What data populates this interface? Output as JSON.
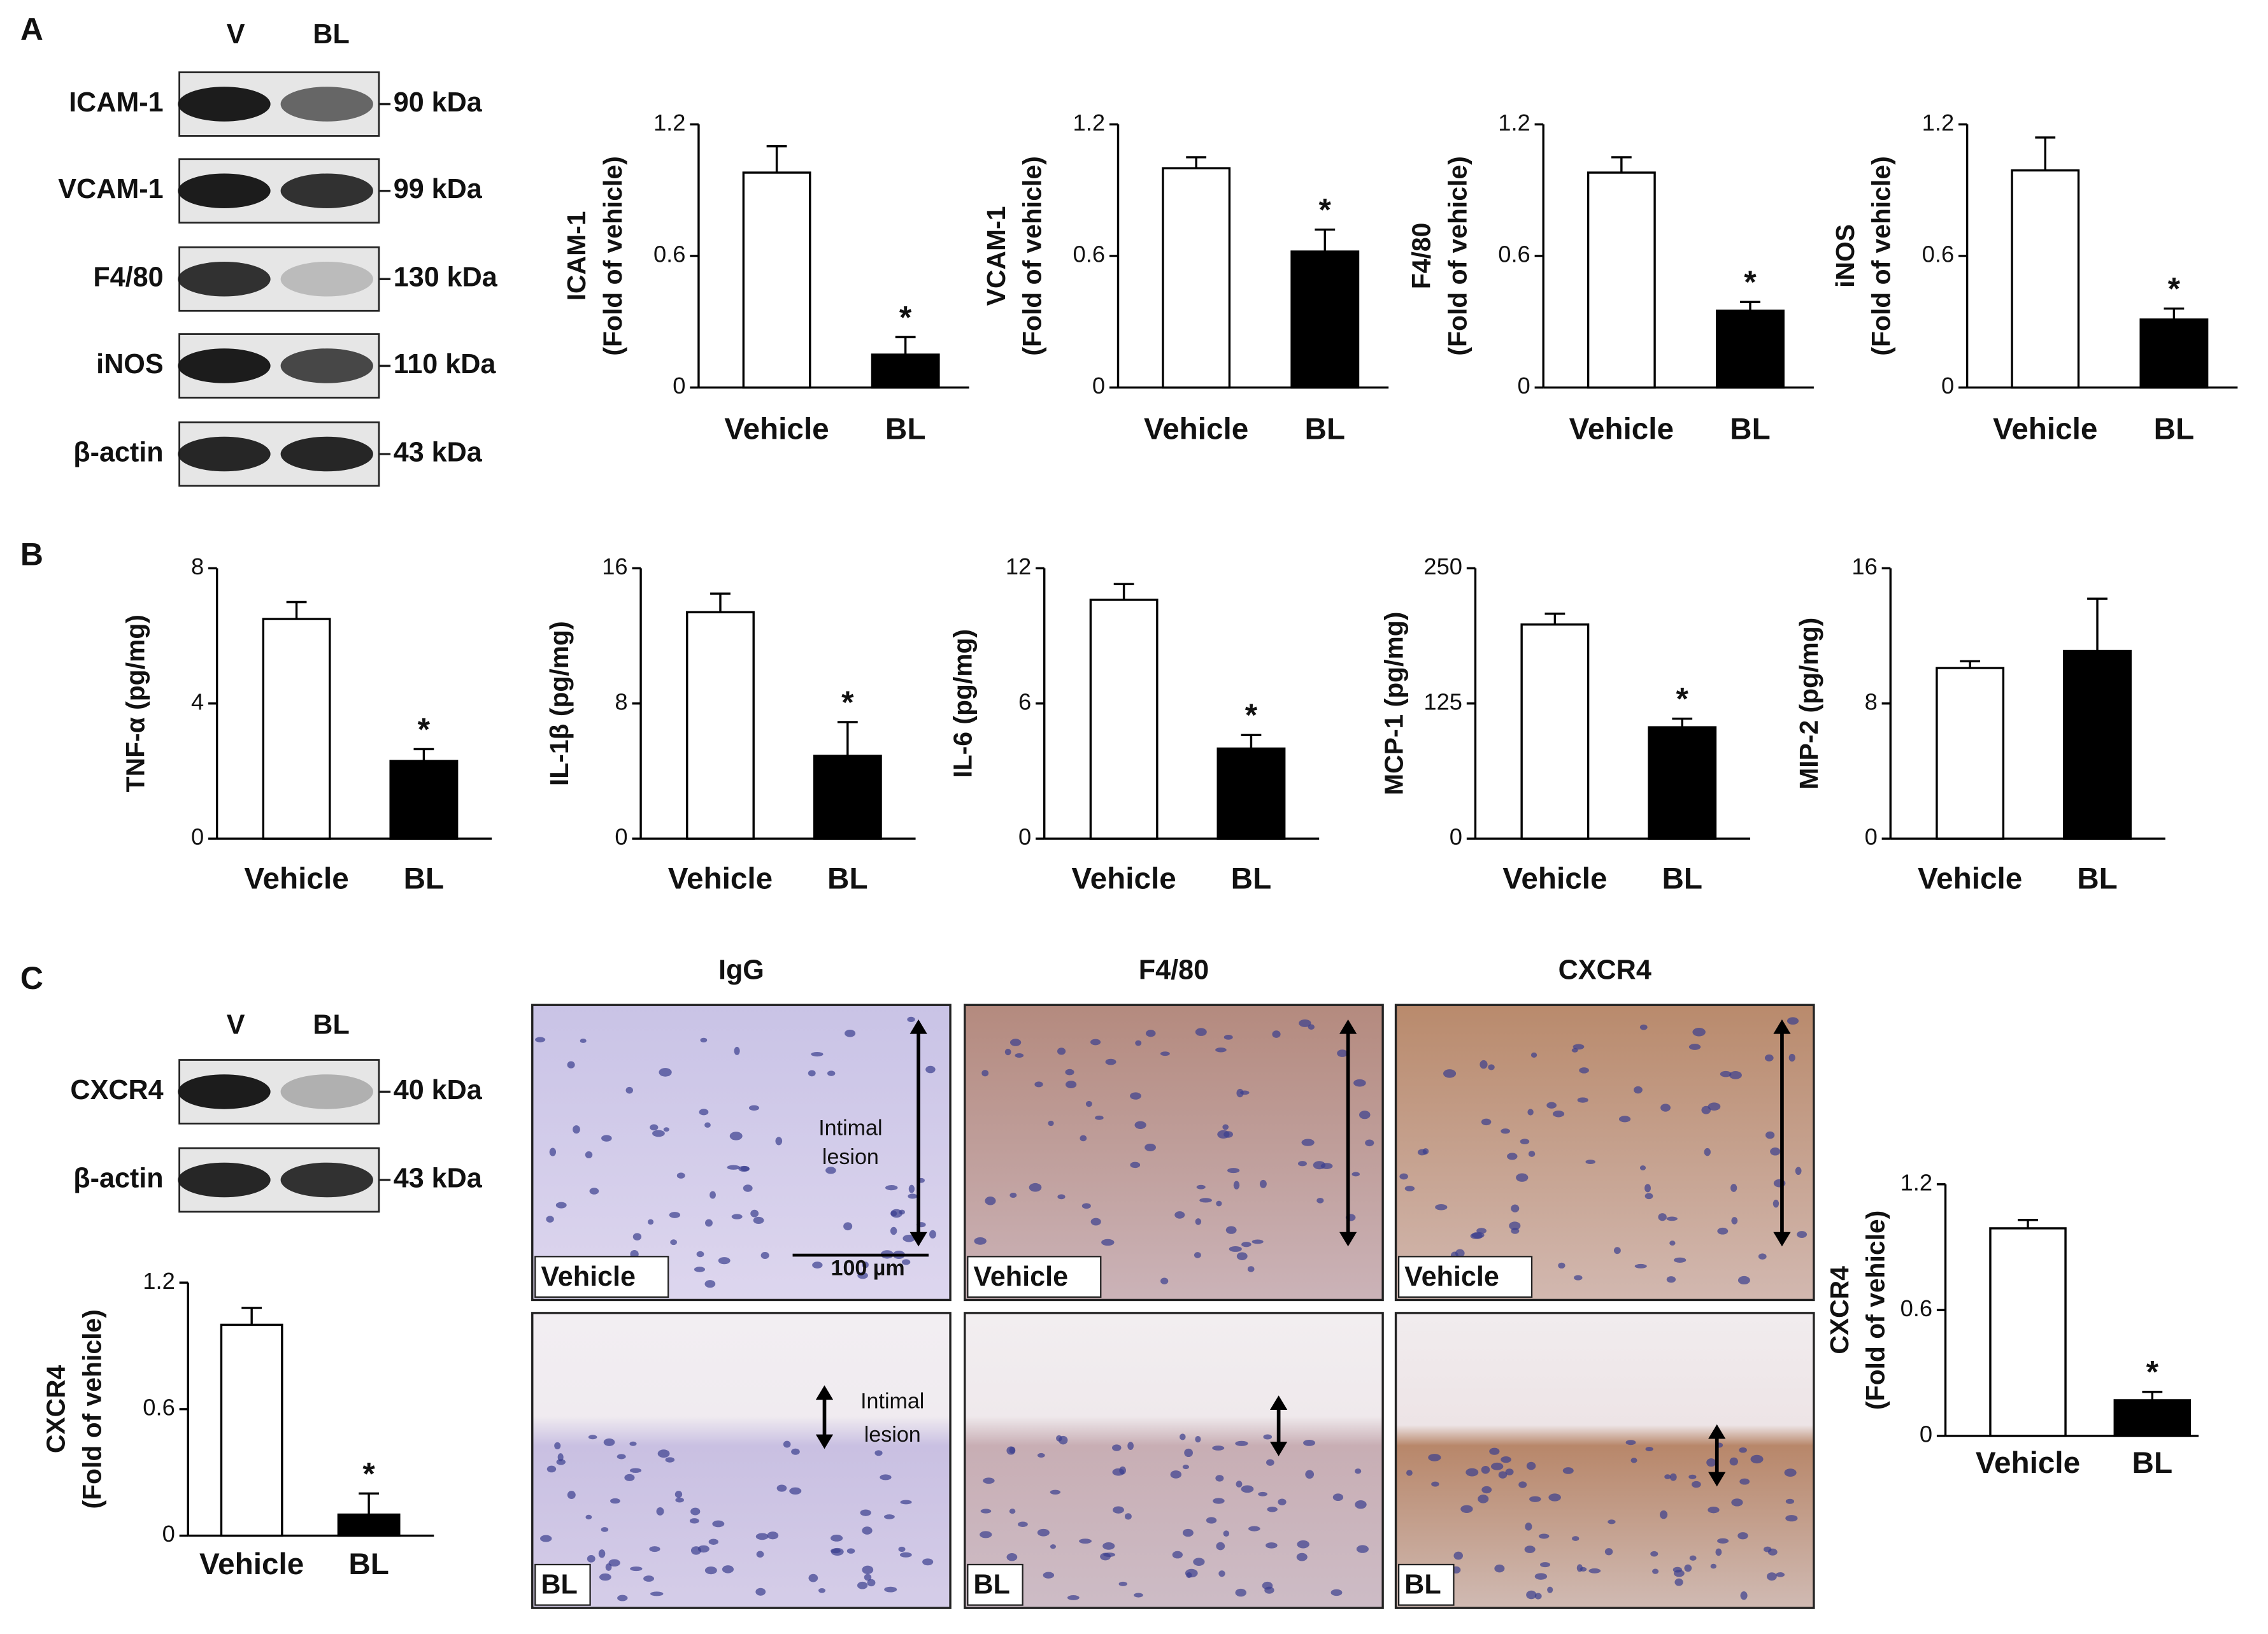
{
  "panel_labels": [
    "A",
    "B",
    "C"
  ],
  "blot_a": {
    "lanes": [
      "V",
      "BL"
    ],
    "rows": [
      {
        "label": "ICAM-1",
        "size": "90 kDa"
      },
      {
        "label": "VCAM-1",
        "size": "99 kDa"
      },
      {
        "label": "F4/80",
        "size": "130 kDa"
      },
      {
        "label": "iNOS",
        "size": "110 kDa"
      },
      {
        "label": "β-actin",
        "size": "43 kDa"
      }
    ]
  },
  "blot_c": {
    "lanes": [
      "V",
      "BL"
    ],
    "rows": [
      {
        "label": "CXCR4",
        "size": "40 kDa"
      },
      {
        "label": "β-actin",
        "size": "43 kDa"
      }
    ]
  },
  "micrographs": {
    "columns": [
      "IgG",
      "F4/80",
      "CXCR4"
    ],
    "rows": [
      "Vehicle",
      "BL"
    ],
    "lesion_label": [
      "Intimal",
      "lesion"
    ],
    "scale_bar": "100 µm"
  },
  "chart_data": [
    {
      "type": "bar",
      "ylabel": [
        "ICAM-1",
        "(Fold of vehicle)"
      ],
      "categories": [
        "Vehicle",
        "BL"
      ],
      "values": [
        0.98,
        0.15
      ],
      "errors": [
        0.12,
        0.08
      ],
      "colors": [
        "#ffffff",
        "#000000"
      ],
      "ylim": [
        0,
        1.2
      ],
      "yticks": [
        0,
        0.6,
        1.2
      ],
      "annotation": "*"
    },
    {
      "type": "bar",
      "ylabel": [
        "VCAM-1",
        "(Fold of vehicle)"
      ],
      "categories": [
        "Vehicle",
        "BL"
      ],
      "values": [
        1.0,
        0.62
      ],
      "errors": [
        0.05,
        0.1
      ],
      "colors": [
        "#ffffff",
        "#000000"
      ],
      "ylim": [
        0,
        1.2
      ],
      "yticks": [
        0,
        0.6,
        1.2
      ],
      "annotation": "*"
    },
    {
      "type": "bar",
      "ylabel": [
        "F4/80",
        "(Fold of vehicle)"
      ],
      "categories": [
        "Vehicle",
        "BL"
      ],
      "values": [
        0.98,
        0.35
      ],
      "errors": [
        0.07,
        0.04
      ],
      "colors": [
        "#ffffff",
        "#000000"
      ],
      "ylim": [
        0,
        1.2
      ],
      "yticks": [
        0,
        0.6,
        1.2
      ],
      "annotation": "*"
    },
    {
      "type": "bar",
      "ylabel": [
        "iNOS",
        "(Fold of vehicle)"
      ],
      "categories": [
        "Vehicle",
        "BL"
      ],
      "values": [
        0.99,
        0.31
      ],
      "errors": [
        0.15,
        0.05
      ],
      "colors": [
        "#ffffff",
        "#000000"
      ],
      "ylim": [
        0,
        1.2
      ],
      "yticks": [
        0,
        0.6,
        1.2
      ],
      "annotation": "*"
    },
    {
      "type": "bar",
      "ylabel": [
        "TNF-α (pg/mg)"
      ],
      "categories": [
        "Vehicle",
        "BL"
      ],
      "values": [
        6.5,
        2.3
      ],
      "errors": [
        0.5,
        0.35
      ],
      "colors": [
        "#ffffff",
        "#000000"
      ],
      "ylim": [
        0,
        8
      ],
      "yticks": [
        0,
        4,
        8
      ],
      "annotation": "*"
    },
    {
      "type": "bar",
      "ylabel": [
        "IL-1β (pg/mg)"
      ],
      "categories": [
        "Vehicle",
        "BL"
      ],
      "values": [
        13.4,
        4.9
      ],
      "errors": [
        1.1,
        2.0
      ],
      "colors": [
        "#ffffff",
        "#000000"
      ],
      "ylim": [
        0,
        16
      ],
      "yticks": [
        0,
        8,
        16
      ],
      "annotation": "*"
    },
    {
      "type": "bar",
      "ylabel": [
        "IL-6 (pg/mg)"
      ],
      "categories": [
        "Vehicle",
        "BL"
      ],
      "values": [
        10.6,
        4.0
      ],
      "errors": [
        0.7,
        0.6
      ],
      "colors": [
        "#ffffff",
        "#000000"
      ],
      "ylim": [
        0,
        12
      ],
      "yticks": [
        0,
        6,
        12
      ],
      "annotation": "*"
    },
    {
      "type": "bar",
      "ylabel": [
        "MCP-1 (pg/mg)"
      ],
      "categories": [
        "Vehicle",
        "BL"
      ],
      "values": [
        198,
        103
      ],
      "errors": [
        10,
        8
      ],
      "colors": [
        "#ffffff",
        "#000000"
      ],
      "ylim": [
        0,
        250
      ],
      "yticks": [
        0,
        125,
        250
      ],
      "annotation": "*"
    },
    {
      "type": "bar",
      "ylabel": [
        "MIP-2 (pg/mg)"
      ],
      "categories": [
        "Vehicle",
        "BL"
      ],
      "values": [
        10.1,
        11.1
      ],
      "errors": [
        0.4,
        3.1
      ],
      "colors": [
        "#ffffff",
        "#000000"
      ],
      "ylim": [
        0,
        16
      ],
      "yticks": [
        0,
        8,
        16
      ]
    },
    {
      "type": "bar",
      "ylabel": [
        "CXCR4",
        "(Fold of vehicle)"
      ],
      "categories": [
        "Vehicle",
        "BL"
      ],
      "values": [
        1.0,
        0.1
      ],
      "errors": [
        0.08,
        0.1
      ],
      "colors": [
        "#ffffff",
        "#000000"
      ],
      "ylim": [
        0,
        1.2
      ],
      "yticks": [
        0,
        0.6,
        1.2
      ],
      "annotation": "*"
    },
    {
      "type": "bar",
      "ylabel": [
        "CXCR4",
        "(Fold of vehicle)"
      ],
      "categories": [
        "Vehicle",
        "BL"
      ],
      "values": [
        0.99,
        0.17
      ],
      "errors": [
        0.04,
        0.04
      ],
      "colors": [
        "#ffffff",
        "#000000"
      ],
      "ylim": [
        0,
        1.2
      ],
      "yticks": [
        0,
        0.6,
        1.2
      ],
      "annotation": "*"
    }
  ]
}
